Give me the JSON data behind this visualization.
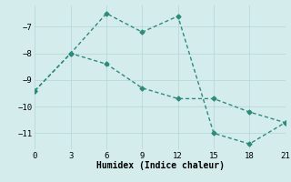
{
  "line1_x": [
    0,
    3,
    6,
    9,
    12,
    15,
    18,
    21
  ],
  "line1_y": [
    -9.4,
    -8.0,
    -6.5,
    -7.2,
    -6.6,
    -11.0,
    -11.4,
    -10.6
  ],
  "line2_x": [
    0,
    3,
    6,
    9,
    12,
    15,
    18,
    21
  ],
  "line2_y": [
    -9.4,
    -8.0,
    -8.4,
    -9.3,
    -9.7,
    -9.7,
    -10.2,
    -10.6
  ],
  "line_color": "#2e8b7a",
  "bg_color": "#d4ecec",
  "grid_color": "#b8d8d8",
  "xlabel": "Humidex (Indice chaleur)",
  "xlim": [
    0,
    21
  ],
  "ylim": [
    -11.6,
    -6.2
  ],
  "xticks": [
    0,
    3,
    6,
    9,
    12,
    15,
    18,
    21
  ],
  "yticks": [
    -7,
    -8,
    -9,
    -10,
    -11
  ],
  "xlabel_fontsize": 7,
  "tick_fontsize": 6.5,
  "marker": "D",
  "marker_size": 2.5,
  "line_width": 1.0
}
